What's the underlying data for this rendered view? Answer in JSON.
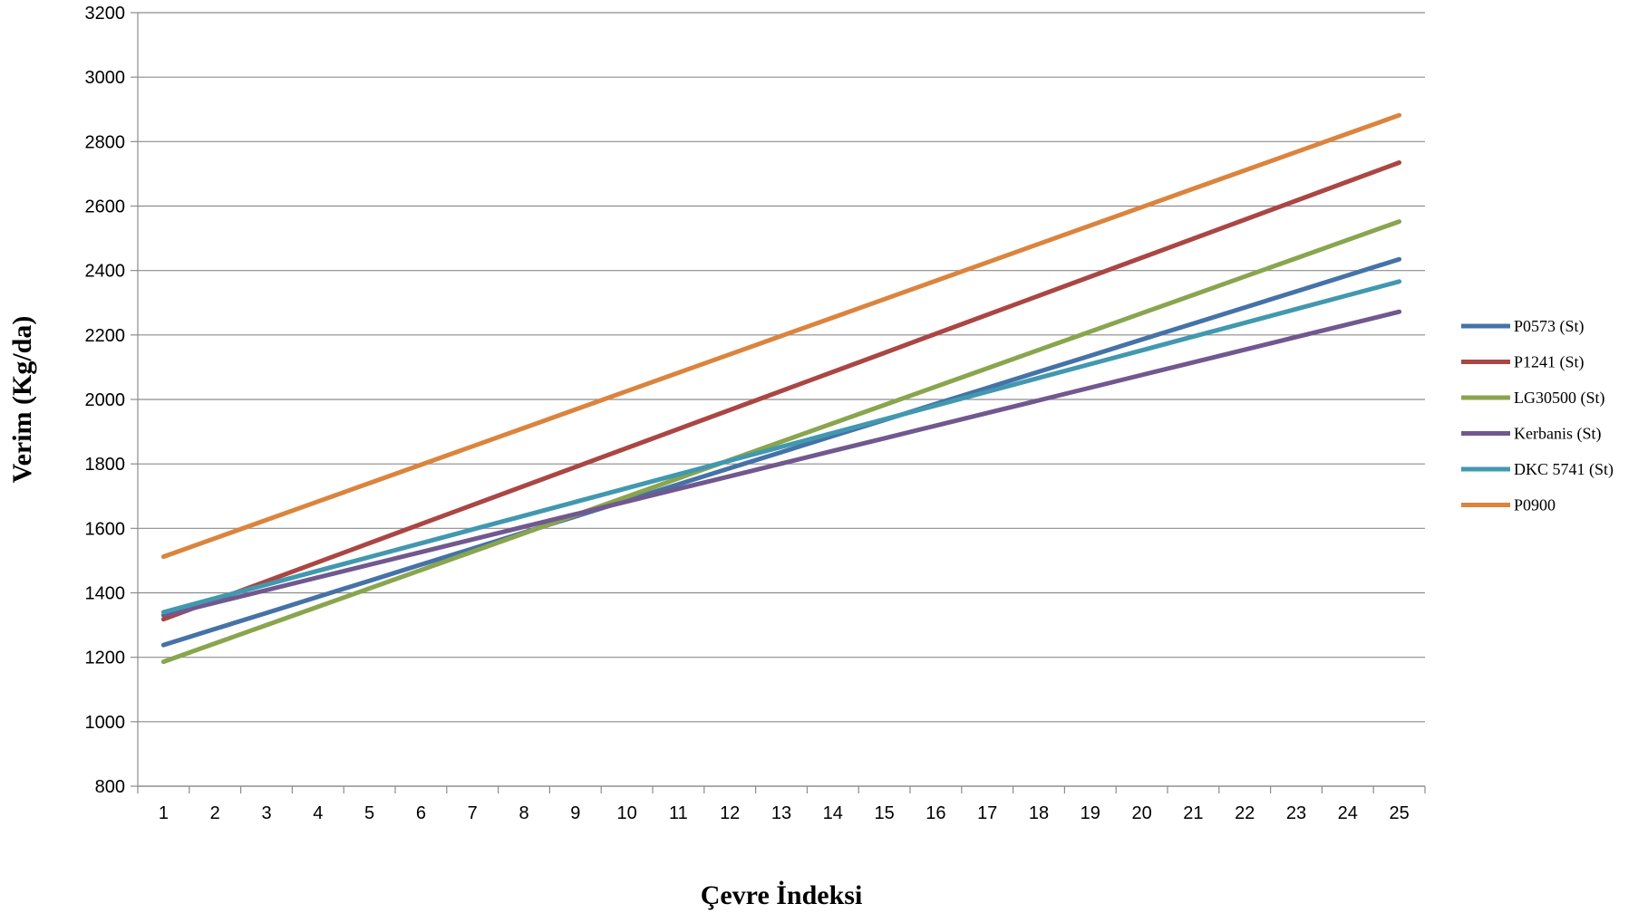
{
  "chart_data": {
    "type": "line",
    "title": "",
    "xlabel": "Çevre İndeksi",
    "ylabel": "Verim (Kg/da)",
    "x": [
      1,
      2,
      3,
      4,
      5,
      6,
      7,
      8,
      9,
      10,
      11,
      12,
      13,
      14,
      15,
      16,
      17,
      18,
      19,
      20,
      21,
      22,
      23,
      24,
      25
    ],
    "ylim": [
      800,
      3200
    ],
    "ystep": 200,
    "grid": true,
    "legend_position": "right",
    "series": [
      {
        "name": "P0573 (St)",
        "color": "#4572A7",
        "start": 1238,
        "end": 2435
      },
      {
        "name": "P1241 (St)",
        "color": "#AA4643",
        "start": 1318,
        "end": 2735
      },
      {
        "name": "LG30500 (St)",
        "color": "#89A54E",
        "start": 1186,
        "end": 2552
      },
      {
        "name": "Kerbanis (St)",
        "color": "#71588F",
        "start": 1330,
        "end": 2272
      },
      {
        "name": "DKC 5741 (St)",
        "color": "#4198AF",
        "start": 1340,
        "end": 2366
      },
      {
        "name": "P0900",
        "color": "#DB843D",
        "start": 1512,
        "end": 2882
      }
    ]
  }
}
